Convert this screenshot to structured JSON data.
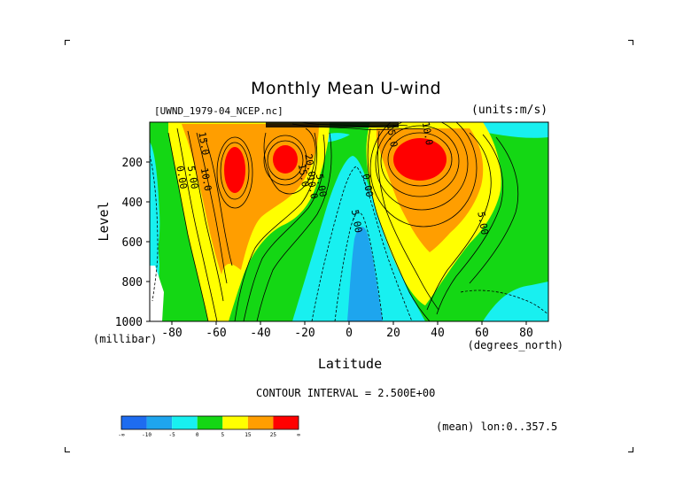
{
  "page": {
    "title": "Monthly Mean U-wind",
    "dataset": "[UWND_1979-04_NCEP.nc]",
    "units": "(units:m/s)",
    "contour_interval": "CONTOUR INTERVAL = 2.500E+00",
    "averaging": "(mean) lon:0..357.5"
  },
  "chart_data": {
    "type": "heatmap",
    "title": "Monthly Mean U-wind",
    "xlabel": "Latitude",
    "xunit": "(degrees_north)",
    "ylabel": "Level",
    "yunit": "(millibar)",
    "xlim": [
      -90,
      90
    ],
    "ylim": [
      1000,
      0
    ],
    "x_ticks": [
      -80,
      -60,
      -40,
      -20,
      0,
      20,
      40,
      60,
      80
    ],
    "x_tick_labels": [
      "-80",
      "-60",
      "-40",
      "-20",
      "0",
      "20",
      "40",
      "60",
      "80"
    ],
    "y_ticks": [
      200,
      400,
      600,
      800,
      1000
    ],
    "y_tick_labels": [
      "200",
      "400",
      "600",
      "800",
      "1000"
    ],
    "contour_interval": 2.5,
    "contour_labels": [
      {
        "text": "0.00",
        "lat": -77,
        "level": 280
      },
      {
        "text": "5.00",
        "lat": -72,
        "level": 280
      },
      {
        "text": "10.0",
        "lat": -66,
        "level": 290
      },
      {
        "text": "15.0",
        "lat": -67,
        "level": 110
      },
      {
        "text": "5.00",
        "lat": -14,
        "level": 320
      },
      {
        "text": "10.0",
        "lat": -18,
        "level": 330
      },
      {
        "text": "15.0",
        "lat": -22,
        "level": 270
      },
      {
        "text": "20.0",
        "lat": -19,
        "level": 220
      },
      {
        "text": "0.00",
        "lat": 7,
        "level": 320
      },
      {
        "text": "5.00",
        "lat": 2,
        "level": 500
      },
      {
        "text": "15.0",
        "lat": 18,
        "level": 70
      },
      {
        "text": "10.0",
        "lat": 34,
        "level": 60
      },
      {
        "text": "5.00",
        "lat": 59,
        "level": 510
      }
    ],
    "colorbar": {
      "colors": [
        "#1e6cf0",
        "#1ea5ee",
        "#18f0f0",
        "#14d714",
        "#ffff00",
        "#ff9e00",
        "#ff0000"
      ],
      "labels": [
        "-∞",
        "-10",
        "-5",
        "0",
        "5",
        "15",
        "25",
        "∞"
      ]
    }
  }
}
